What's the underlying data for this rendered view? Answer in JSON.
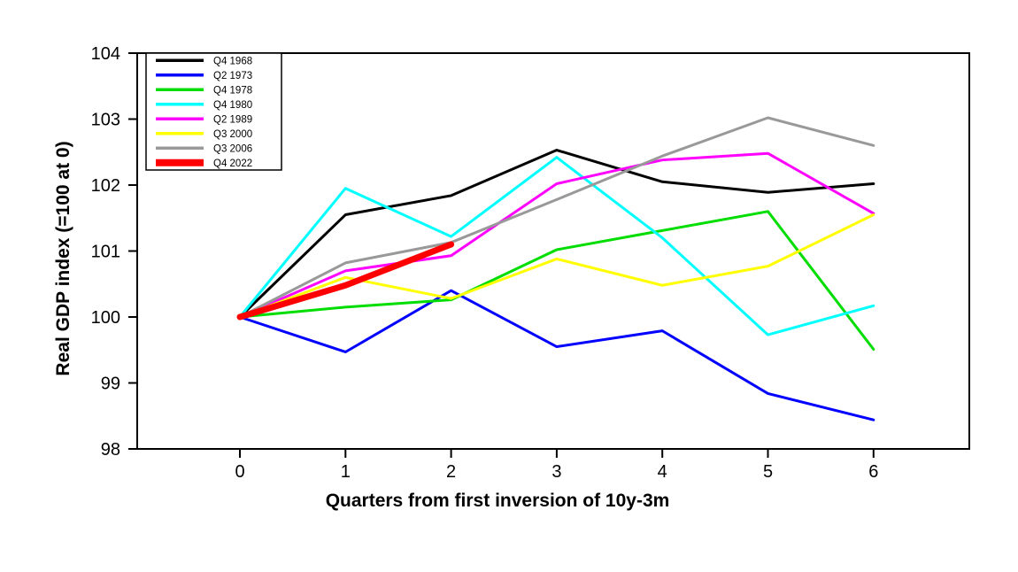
{
  "chart_data": {
    "type": "line",
    "title": "",
    "xlabel": "Quarters from first inversion of 10y-3m",
    "ylabel": "Real GDP index (=100 at 0)",
    "x": [
      0,
      1,
      2,
      3,
      4,
      5,
      6
    ],
    "xticks": [
      "0",
      "1",
      "2",
      "3",
      "4",
      "5",
      "6"
    ],
    "yticks": [
      "98",
      "99",
      "100",
      "101",
      "102",
      "103",
      "104"
    ],
    "xlim": [
      -0.97,
      6.9
    ],
    "ylim": [
      98,
      104
    ],
    "grid": false,
    "legend_position": "top-left",
    "series": [
      {
        "name": "Q4 1968",
        "color": "#000000",
        "width": 3,
        "values": [
          100,
          101.55,
          101.84,
          102.53,
          102.05,
          101.89,
          102.02
        ]
      },
      {
        "name": "Q2 1973",
        "color": "#0000FF",
        "width": 3,
        "values": [
          100,
          99.47,
          100.4,
          99.55,
          99.79,
          98.84,
          98.44
        ]
      },
      {
        "name": "Q4 1978",
        "color": "#00DD00",
        "width": 3,
        "values": [
          100,
          100.15,
          100.26,
          101.02,
          101.31,
          101.6,
          99.51
        ]
      },
      {
        "name": "Q4 1980",
        "color": "#00FFFF",
        "width": 3,
        "values": [
          100,
          101.95,
          101.22,
          102.42,
          101.2,
          99.73,
          100.17
        ]
      },
      {
        "name": "Q2 1989",
        "color": "#FF00FF",
        "width": 3,
        "values": [
          100,
          100.7,
          100.93,
          102.02,
          102.38,
          102.48,
          101.57
        ]
      },
      {
        "name": "Q3 2000",
        "color": "#FFFF00",
        "width": 3,
        "values": [
          100,
          100.6,
          100.28,
          100.88,
          100.48,
          100.77,
          101.55
        ]
      },
      {
        "name": "Q3 2006",
        "color": "#999999",
        "width": 3,
        "values": [
          100,
          100.82,
          101.13,
          101.78,
          102.44,
          103.02,
          102.6
        ]
      },
      {
        "name": "Q4 2022",
        "color": "#FF0000",
        "width": 7,
        "values": [
          100,
          100.48,
          101.1,
          null,
          null,
          null,
          null
        ]
      }
    ]
  }
}
